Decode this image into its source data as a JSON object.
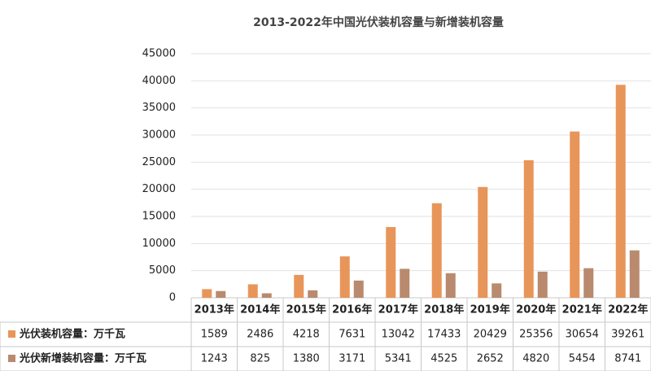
{
  "chart_data": {
    "type": "bar",
    "title": "2013-2022年中国光伏装机容量与新增装机容量",
    "categories": [
      "2013年",
      "2014年",
      "2015年",
      "2016年",
      "2017年",
      "2018年",
      "2019年",
      "2020年",
      "2021年",
      "2022年"
    ],
    "series": [
      {
        "name": "光伏装机容量：万千瓦",
        "color": "#e8955a",
        "values": [
          1589,
          2486,
          4218,
          7631,
          13042,
          17433,
          20429,
          25356,
          30654,
          39261
        ]
      },
      {
        "name": "光伏新增装机容量：万千瓦",
        "color": "#b98a6e",
        "values": [
          1243,
          825,
          1380,
          3171,
          5341,
          4525,
          2652,
          4820,
          5454,
          8741
        ]
      }
    ],
    "ylim": [
      0,
      45000
    ],
    "yticks": [
      0,
      5000,
      10000,
      15000,
      20000,
      25000,
      30000,
      35000,
      40000,
      45000
    ],
    "grid": true
  }
}
